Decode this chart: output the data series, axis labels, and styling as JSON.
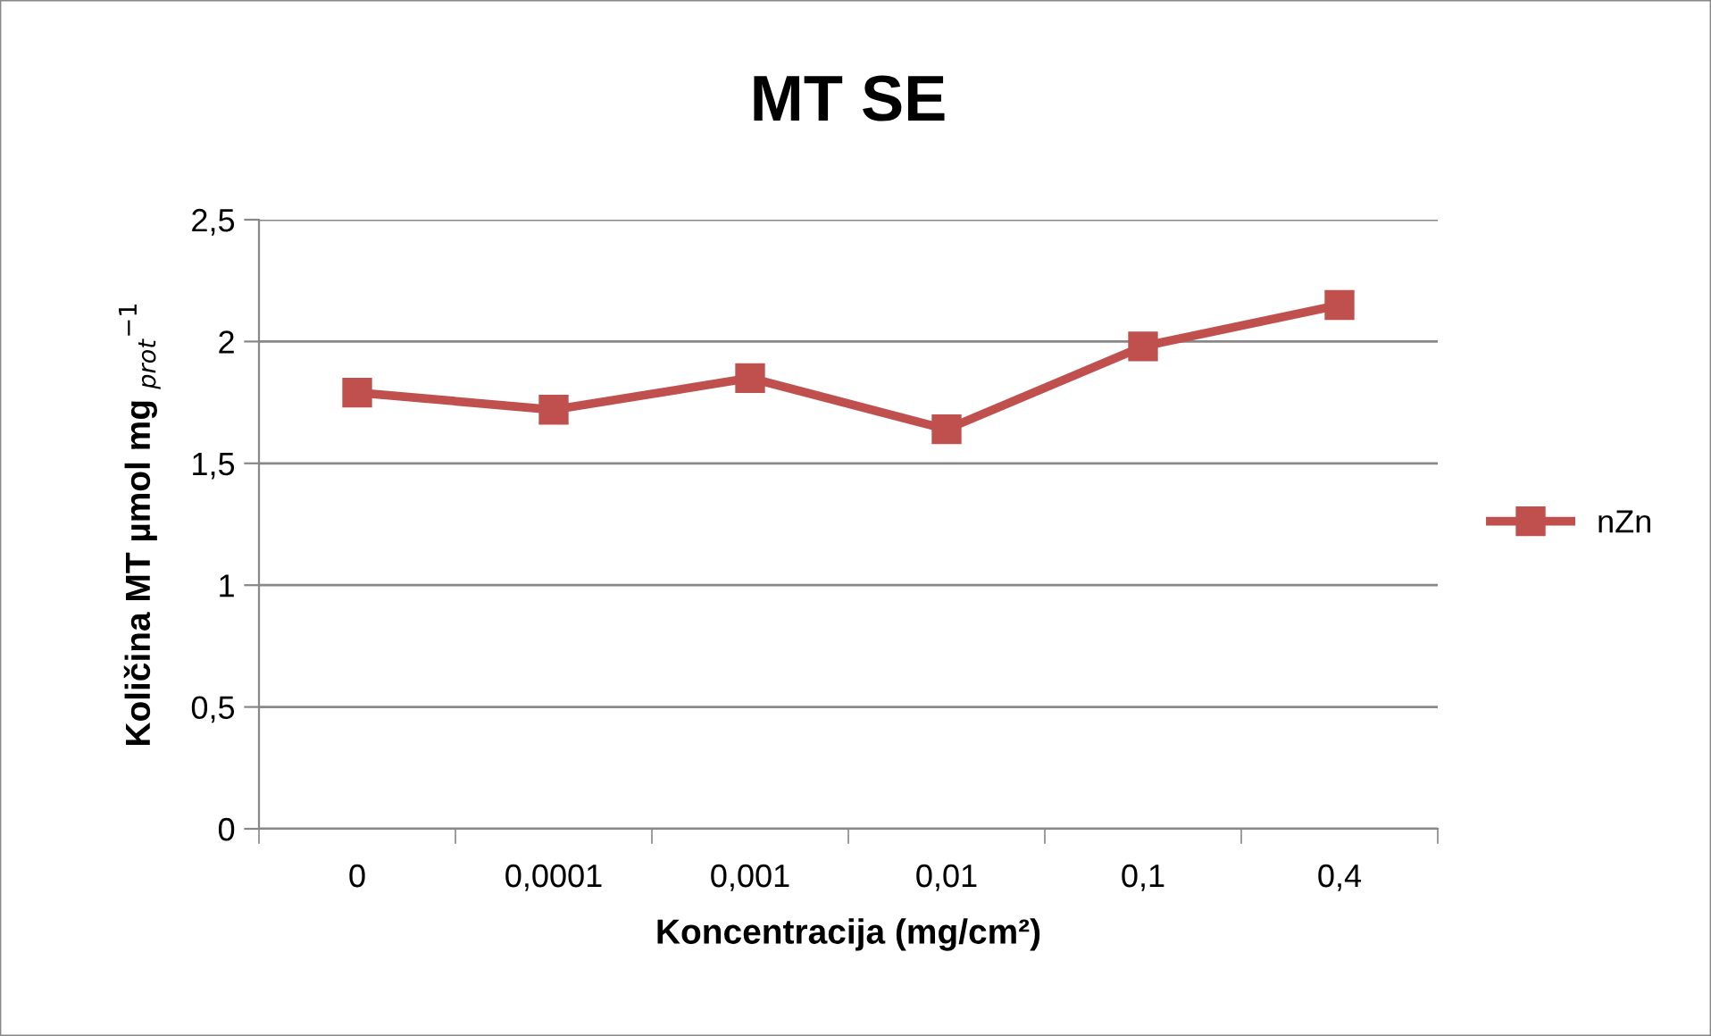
{
  "chart_data": {
    "type": "line",
    "title": "MT SE",
    "xlabel": "Koncentracija (mg/cm²)",
    "ylabel": "Količina MT µmol mg $_{prot}$$^{−1}$",
    "categories": [
      "0",
      "0,0001",
      "0,001",
      "0,01",
      "0,1",
      "0,4"
    ],
    "series": [
      {
        "name": "nZn",
        "color": "#c0504d",
        "values": [
          1.79,
          1.72,
          1.85,
          1.64,
          1.98,
          2.15
        ]
      }
    ],
    "ylim": [
      0,
      2.5
    ],
    "yticks": [
      0,
      {
        "value": 0.5,
        "label": "0,5"
      },
      1,
      {
        "value": 1.5,
        "label": "1,5"
      },
      2,
      {
        "value": 2.5,
        "label": "2,5"
      }
    ],
    "grid": "y",
    "legend": "right",
    "marker": "square",
    "line_style": "solid"
  }
}
